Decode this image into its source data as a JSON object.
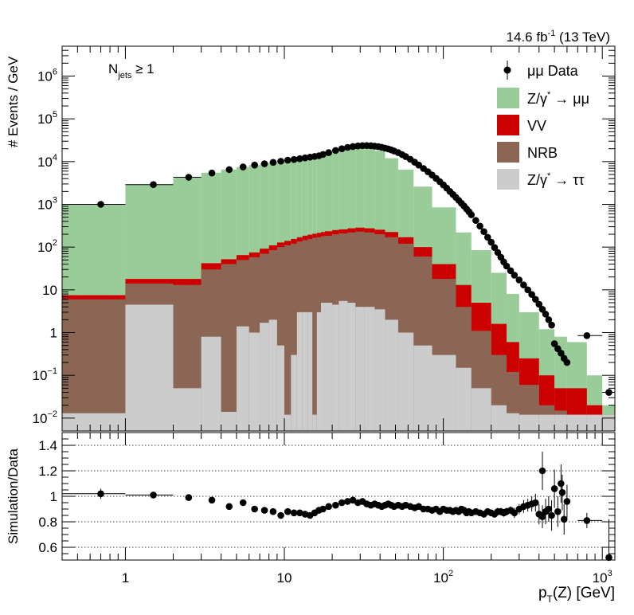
{
  "header": {
    "lumi_main": "14.6 fb",
    "lumi_exp": "-1",
    "lumi_energy": " (13 TeV)"
  },
  "annotation": {
    "njets_N": "N",
    "njets_sub": "jets",
    "njets_rest": " ≥ 1"
  },
  "chart_data": [
    {
      "type": "area",
      "panel": "main",
      "ylabel": "# Events / GeV",
      "xscale": "log",
      "yscale": "log",
      "xlim": [
        0.4,
        1200
      ],
      "ylim": [
        0.005,
        5000000
      ],
      "yticks": [
        {
          "v": 0.01,
          "m": "10",
          "e": "−2"
        },
        {
          "v": 0.1,
          "m": "10",
          "e": "−1"
        },
        {
          "v": 1,
          "m": "1",
          "e": ""
        },
        {
          "v": 10,
          "m": "10",
          "e": ""
        },
        {
          "v": 100,
          "m": "10",
          "e": "2"
        },
        {
          "v": 1000,
          "m": "10",
          "e": "3"
        },
        {
          "v": 10000,
          "m": "10",
          "e": "4"
        },
        {
          "v": 100000,
          "m": "10",
          "e": "5"
        },
        {
          "v": 1000000,
          "m": "10",
          "e": "6"
        }
      ],
      "legend_position": "top-right",
      "legend": [
        {
          "key": "data",
          "label": "μμ Data",
          "marker": "point",
          "color": "#000000"
        },
        {
          "key": "z_mumu",
          "label_a": "Z/γ",
          "label_sup": "*",
          "label_b": " → μμ",
          "marker": "box",
          "color": "#99cc99"
        },
        {
          "key": "vv",
          "label": "VV",
          "marker": "box",
          "color": "#cc0000"
        },
        {
          "key": "nrb",
          "label": "NRB",
          "marker": "box",
          "color": "#8c6655"
        },
        {
          "key": "z_tautau",
          "label_a": "Z/γ",
          "label_sup": "*",
          "label_b": " → ττ",
          "marker": "box",
          "color": "#cccccc"
        }
      ],
      "bin_edges": [
        0.4,
        1,
        2,
        3,
        4,
        5,
        6,
        7,
        8,
        9,
        10,
        11,
        12,
        13,
        14,
        15,
        16,
        17,
        18,
        20,
        22,
        25,
        28,
        32,
        37,
        43,
        52,
        65,
        85,
        120,
        150,
        200,
        250,
        300,
        400,
        500,
        600,
        800,
        1000,
        1200
      ],
      "series": [
        {
          "key": "z_tautau",
          "color": "#cccccc",
          "values": [
            0.013,
            4.5,
            0.05,
            0.8,
            0.014,
            1.4,
            1.0,
            1.7,
            2.0,
            0.5,
            0.012,
            0.3,
            3.0,
            3.0,
            3.0,
            0.012,
            3.0,
            5.0,
            5.0,
            4.5,
            5.5,
            5.0,
            4.0,
            4.0,
            3.5,
            2.0,
            1.0,
            0.5,
            0.3,
            0.15,
            0.05,
            0.02,
            0.013,
            0.012,
            0.012,
            0.012,
            0.012,
            0.012,
            0.012
          ]
        },
        {
          "key": "nrb",
          "color": "#8c6655",
          "values": [
            6.0,
            14.0,
            13.0,
            30.0,
            40.0,
            50.0,
            58.0,
            70.0,
            85.0,
            100.0,
            110.0,
            120.0,
            135.0,
            145.0,
            155.0,
            165.0,
            170.0,
            180.0,
            185.0,
            200.0,
            210.0,
            220.0,
            230.0,
            220.0,
            200.0,
            170.0,
            120.0,
            60.0,
            18.0,
            4.0,
            1.1,
            0.3,
            0.12,
            0.06,
            0.02,
            0.015,
            0.012,
            0.012,
            0.012
          ]
        },
        {
          "key": "vv",
          "color": "#cc0000",
          "values": [
            7.5,
            18.0,
            18.0,
            42.0,
            52.0,
            65.0,
            75.0,
            92.0,
            110.0,
            128.0,
            140.0,
            155.0,
            170.0,
            185.0,
            195.0,
            205.0,
            215.0,
            225.0,
            235.0,
            250.0,
            260.0,
            275.0,
            285.0,
            275.0,
            255.0,
            225.0,
            170.0,
            100.0,
            40.0,
            13.0,
            5.0,
            1.6,
            0.6,
            0.25,
            0.1,
            0.05,
            0.05,
            0.02,
            0.012
          ]
        },
        {
          "key": "z_mumu",
          "color": "#99cc99",
          "values": [
            1000,
            2900,
            4200,
            5500,
            6500,
            7500,
            8300,
            9000,
            9800,
            10500,
            11000,
            11500,
            12000,
            12500,
            13000,
            13500,
            14000,
            15000,
            16500,
            18500,
            21000,
            23000,
            24000,
            22500,
            18000,
            12000,
            6500,
            2600,
            850,
            220,
            85,
            25,
            8.0,
            3.0,
            1.2,
            0.8,
            0.6,
            0.1,
            0.02
          ]
        }
      ],
      "data_points": {
        "x": [
          0.7,
          1.5,
          2.5,
          3.5,
          4.5,
          5.5,
          6.5,
          7.5,
          8.5,
          9.5,
          10.5,
          11.5,
          12.5,
          13.5,
          14.5,
          15.5,
          16.5,
          17.5,
          19,
          21,
          23,
          25,
          27,
          29,
          31,
          33,
          35,
          37,
          39,
          41,
          43,
          45,
          47,
          49,
          52,
          55,
          58,
          62,
          66,
          70,
          75,
          80,
          85,
          90,
          95,
          100,
          105,
          110,
          115,
          120,
          125,
          130,
          135,
          140,
          145,
          150,
          160,
          170,
          180,
          190,
          200,
          210,
          220,
          230,
          240,
          250,
          265,
          280,
          300,
          320,
          340,
          360,
          380,
          400,
          420,
          440,
          460,
          480,
          500,
          525,
          550,
          575,
          600,
          800,
          1100
        ],
        "y": [
          1000,
          2900,
          4300,
          5400,
          6500,
          7500,
          8300,
          8900,
          9600,
          10200,
          10800,
          11200,
          11700,
          12200,
          12700,
          13200,
          13700,
          14700,
          16200,
          18200,
          20000,
          21500,
          22500,
          23200,
          23600,
          23700,
          23500,
          23000,
          22400,
          21600,
          20700,
          19800,
          18800,
          17700,
          16200,
          14600,
          13100,
          11300,
          9700,
          8300,
          6900,
          5800,
          4850,
          4050,
          3400,
          2850,
          2400,
          2000,
          1700,
          1450,
          1240,
          1060,
          910,
          780,
          670,
          570,
          420,
          310,
          230,
          170,
          130,
          98,
          75,
          58,
          45,
          36,
          28,
          22,
          17,
          13,
          10,
          7.8,
          6.0,
          4.6,
          3.5,
          2.7,
          2.0,
          1.5,
          0.55,
          0.42,
          0.33,
          0.25,
          0.2,
          0.85,
          0.04
        ],
        "xerr_lo": [
          0.3,
          0.5,
          0.5
        ],
        "xerr_hi": [
          0.3,
          0.5,
          0.5
        ]
      }
    },
    {
      "type": "scatter",
      "panel": "ratio",
      "xlabel_a": "p",
      "xlabel_sub": "T",
      "xlabel_b": "(Z) [GeV]",
      "ylabel": "Simulation/Data",
      "xscale": "log",
      "xlim": [
        0.4,
        1200
      ],
      "ylim": [
        0.5,
        1.5
      ],
      "yticks": [
        0.6,
        0.8,
        1,
        1.2,
        1.4
      ],
      "ytick_labels": [
        "0.6",
        "0.8",
        "1",
        "1.2",
        "1.4"
      ],
      "xtick_labels": [
        {
          "v": 1,
          "m": "1",
          "e": ""
        },
        {
          "v": 10,
          "m": "10",
          "e": ""
        },
        {
          "v": 100,
          "m": "10",
          "e": "2"
        },
        {
          "v": 1000,
          "m": "10",
          "e": "3"
        }
      ],
      "grid": "horizontal dotted at major y ticks",
      "points": {
        "x": [
          0.7,
          1.5,
          2.5,
          3.5,
          4.5,
          5.5,
          6.5,
          7.5,
          8.5,
          9.5,
          10.5,
          11.5,
          12.5,
          13.5,
          14.5,
          15.5,
          16.5,
          17.5,
          19,
          21,
          23,
          25,
          27,
          29,
          31,
          33,
          35,
          37,
          39,
          41,
          43,
          45,
          47,
          49,
          52,
          55,
          58,
          62,
          66,
          70,
          75,
          80,
          85,
          90,
          95,
          100,
          105,
          110,
          115,
          120,
          125,
          130,
          135,
          140,
          145,
          150,
          160,
          170,
          180,
          190,
          200,
          210,
          220,
          230,
          240,
          250,
          265,
          280,
          300,
          320,
          340,
          360,
          380,
          400,
          420,
          440,
          460,
          480,
          500,
          525,
          550,
          575,
          600,
          800,
          1100
        ],
        "y": [
          1.02,
          1.01,
          0.99,
          0.97,
          0.92,
          0.95,
          0.9,
          0.89,
          0.88,
          0.85,
          0.88,
          0.87,
          0.87,
          0.86,
          0.85,
          0.87,
          0.89,
          0.9,
          0.92,
          0.93,
          0.95,
          0.96,
          0.97,
          0.95,
          0.96,
          0.94,
          0.93,
          0.94,
          0.93,
          0.92,
          0.93,
          0.94,
          0.93,
          0.92,
          0.93,
          0.92,
          0.93,
          0.92,
          0.91,
          0.92,
          0.9,
          0.9,
          0.89,
          0.9,
          0.88,
          0.9,
          0.89,
          0.89,
          0.88,
          0.89,
          0.88,
          0.9,
          0.89,
          0.87,
          0.88,
          0.87,
          0.88,
          0.87,
          0.86,
          0.88,
          0.87,
          0.86,
          0.88,
          0.88,
          0.87,
          0.88,
          0.89,
          0.87,
          0.9,
          0.92,
          0.93,
          0.94,
          0.95,
          0.86,
          0.84,
          0.88,
          0.9,
          0.85,
          1.06,
          0.88,
          1.1,
          0.82,
          0.96,
          0.81,
          0.52
        ],
        "yerr": [
          0.04,
          0.02,
          0.015,
          0.015,
          0.015,
          0.015,
          0.015,
          0.015,
          0.015,
          0.015,
          0.015,
          0.015,
          0.015,
          0.015,
          0.015,
          0.015,
          0.015,
          0.015,
          0.015,
          0.015,
          0.015,
          0.015,
          0.015,
          0.015,
          0.015,
          0.015,
          0.015,
          0.015,
          0.015,
          0.015,
          0.015,
          0.015,
          0.015,
          0.015,
          0.015,
          0.015,
          0.015,
          0.015,
          0.015,
          0.015,
          0.015,
          0.015,
          0.015,
          0.015,
          0.015,
          0.015,
          0.015,
          0.015,
          0.015,
          0.015,
          0.015,
          0.015,
          0.015,
          0.015,
          0.015,
          0.015,
          0.02,
          0.02,
          0.02,
          0.02,
          0.02,
          0.02,
          0.03,
          0.03,
          0.03,
          0.03,
          0.03,
          0.04,
          0.04,
          0.05,
          0.05,
          0.06,
          0.07,
          0.08,
          0.09,
          0.1,
          0.1,
          0.12,
          0.15,
          0.12,
          0.15,
          0.12,
          0.13,
          0.06,
          0.3
        ],
        "highlight": [
          {
            "x": 420,
            "y": 1.2,
            "yerr": 0.15
          },
          {
            "x": 560,
            "y": 1.03,
            "yerr": 0.14
          }
        ]
      }
    }
  ]
}
